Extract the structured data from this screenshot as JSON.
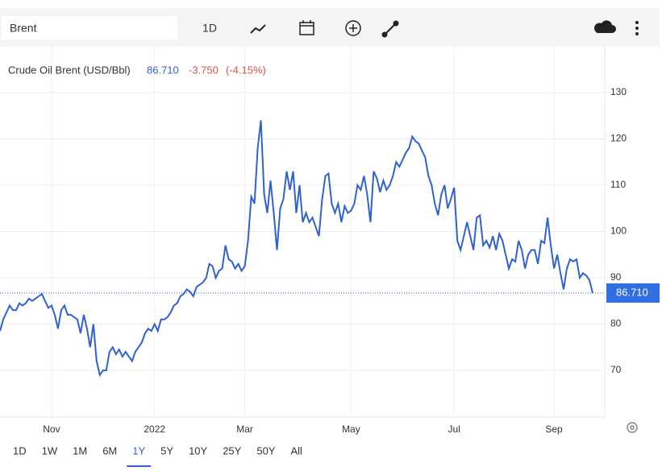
{
  "toolbar": {
    "symbol": "Brent",
    "interval": "1D"
  },
  "chart_data": {
    "type": "line",
    "price": "86.710",
    "change": "-3.750",
    "change_pct": "(-4.15%)",
    "series": [
      {
        "name": "Crude Oil Brent (USD/Bbl)",
        "color": "#2f62d0",
        "values": [
          78.5,
          81,
          82.5,
          84,
          83,
          83,
          84.5,
          84,
          84.5,
          85.5,
          85,
          85.5,
          86,
          86.5,
          85,
          83.5,
          84,
          82,
          79,
          83,
          84,
          82,
          82,
          81.5,
          81,
          78,
          82,
          79,
          75,
          80,
          72,
          69,
          70,
          70,
          74,
          75,
          73.5,
          74.5,
          73,
          74,
          73,
          72,
          74,
          75,
          76,
          78,
          79,
          78.5,
          80,
          78.5,
          81,
          81,
          81.5,
          82.5,
          84,
          84.5,
          86,
          86.5,
          87.5,
          87,
          86,
          88,
          88.5,
          89,
          90,
          93,
          92.5,
          90,
          91.5,
          92,
          97,
          94,
          93.5,
          92,
          93,
          91.5,
          92.5,
          98,
          107.5,
          106,
          118,
          124,
          108,
          104,
          111,
          104,
          96,
          105,
          107,
          113,
          109,
          113,
          104,
          110,
          102,
          104,
          102,
          103,
          101,
          99,
          107,
          112,
          112.5,
          106,
          104,
          106,
          102,
          105.5,
          104,
          104.5,
          106,
          110,
          109,
          112,
          108,
          102,
          113,
          111.5,
          108.5,
          111,
          109,
          110,
          112,
          115,
          114,
          115.5,
          117,
          118,
          120.5,
          119.5,
          119,
          117.5,
          116,
          112,
          110,
          106,
          103.5,
          108,
          110,
          105,
          107,
          109.5,
          98,
          96,
          99,
          102,
          99,
          96,
          103,
          103.5,
          97,
          98,
          96.5,
          99,
          96,
          99.5,
          98,
          95,
          92,
          94,
          93.5,
          98,
          96,
          92,
          95,
          96,
          96,
          93,
          98,
          97.5,
          103,
          97,
          92,
          95,
          91,
          87.5,
          92,
          94,
          93.5,
          94,
          90,
          91,
          90.5,
          89.5,
          86.71
        ]
      }
    ],
    "last_label": "86.710",
    "ylim": [
      60,
      140
    ],
    "yticks": [
      70,
      80,
      90,
      100,
      110,
      120,
      130
    ],
    "xticks": [
      {
        "value": 16,
        "label": "Nov"
      },
      {
        "value": 48,
        "label": "2022"
      },
      {
        "value": 76,
        "label": "Mar"
      },
      {
        "value": 109,
        "label": "May"
      },
      {
        "value": 141,
        "label": "Jul"
      },
      {
        "value": 172,
        "label": "Sep"
      }
    ],
    "grid": true
  },
  "ranges": {
    "items": [
      "1D",
      "1W",
      "1M",
      "6M",
      "1Y",
      "5Y",
      "10Y",
      "25Y",
      "50Y",
      "All"
    ],
    "active": "1Y"
  }
}
